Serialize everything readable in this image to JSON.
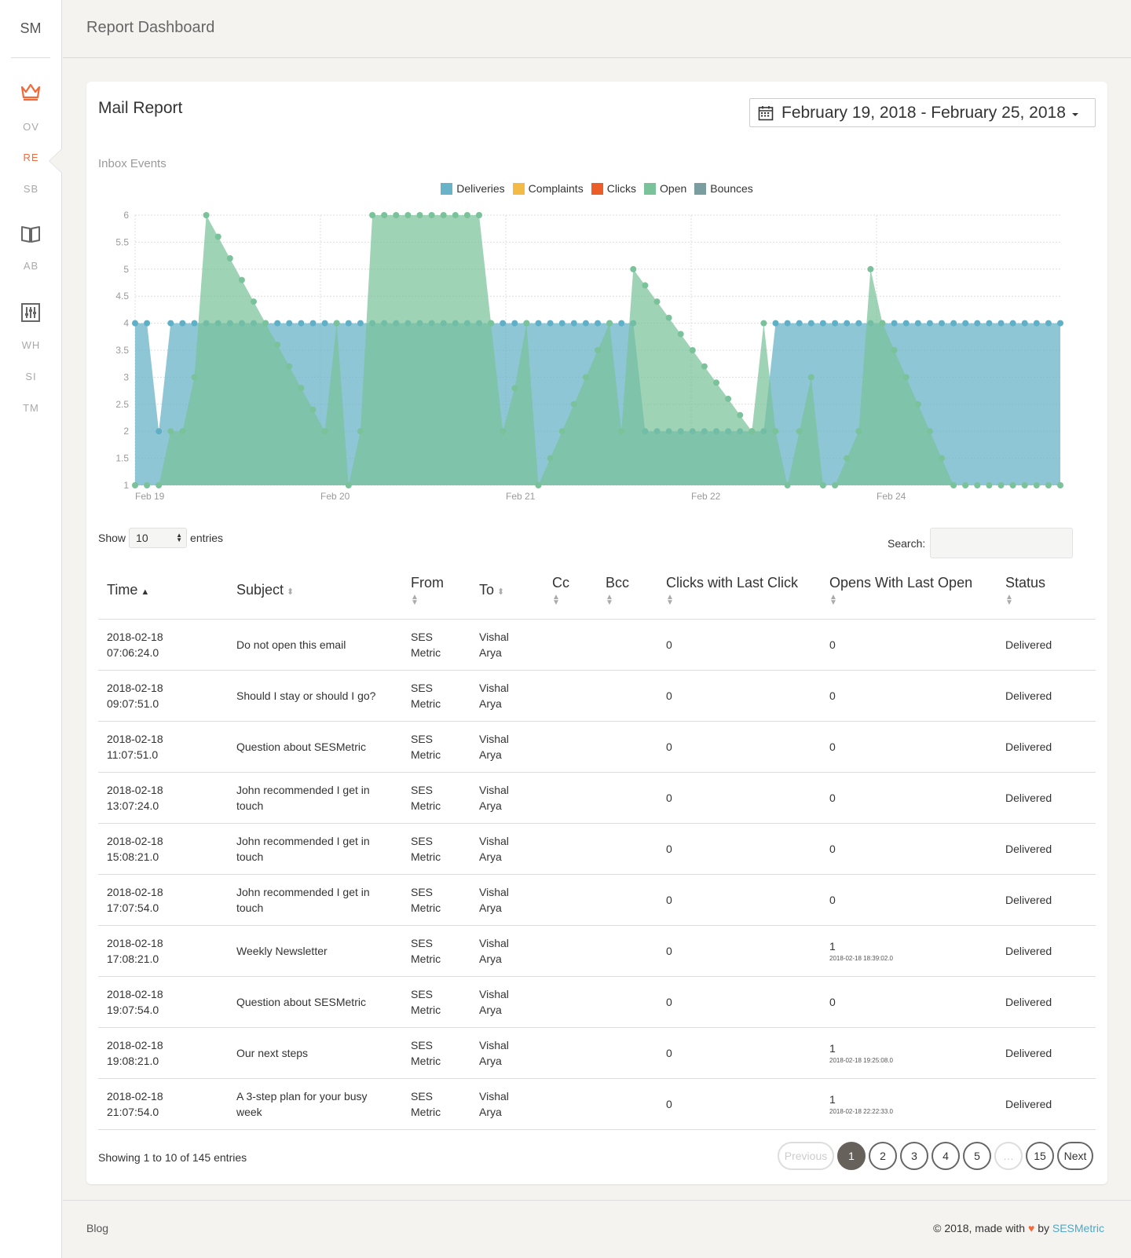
{
  "sidebar": {
    "brand": "SM",
    "items": [
      {
        "label": "OV",
        "icon": "crown-icon"
      },
      {
        "label": "RE",
        "active": true
      },
      {
        "label": "SB"
      },
      {
        "label": "AB",
        "icon": "book-icon"
      },
      {
        "label": "WH",
        "icon": "sliders-icon"
      },
      {
        "label": "SI"
      },
      {
        "label": "TM"
      }
    ]
  },
  "header": {
    "title": "Report Dashboard"
  },
  "card": {
    "title": "Mail Report",
    "date_range": "February 19, 2018 - February 25, 2018",
    "chart_caption": "Inbox Events"
  },
  "chart_data": {
    "type": "area",
    "legend": [
      "Deliveries",
      "Complaints",
      "Clicks",
      "Open",
      "Bounces"
    ],
    "colors": {
      "Deliveries": "#68b3c8",
      "Complaints": "#f3bb45",
      "Clicks": "#eb5e28",
      "Open": "#7ac29a",
      "Bounces": "#7a9e9f"
    },
    "ylim": [
      1,
      6
    ],
    "yticks": [
      1,
      1.5,
      2,
      2.5,
      3,
      3.5,
      4,
      4.5,
      5,
      5.5,
      6
    ],
    "xticks": [
      "Feb 19",
      "Feb 20",
      "Feb 21",
      "Feb 22",
      "Feb 24"
    ],
    "grid": true,
    "legend_position": "top",
    "series": [
      {
        "name": "Deliveries",
        "values": [
          4,
          4,
          2,
          4,
          4,
          4,
          4,
          4,
          4,
          4,
          4,
          4,
          4,
          4,
          4,
          4,
          4,
          4,
          4,
          4,
          4,
          4,
          4,
          4,
          4,
          4,
          4,
          4,
          4,
          4,
          4,
          4,
          4,
          4,
          4,
          4,
          4,
          4,
          4,
          4,
          4,
          4,
          4,
          2,
          2,
          2,
          2,
          2,
          2,
          2,
          2,
          2,
          2,
          2,
          4,
          4,
          4,
          4,
          4,
          4,
          4,
          4,
          4,
          4,
          4,
          4,
          4,
          4,
          4,
          4,
          4,
          4,
          4,
          4,
          4,
          4,
          4,
          4,
          4
        ]
      },
      {
        "name": "Open",
        "values": [
          1,
          1,
          1,
          2,
          2,
          3,
          6,
          5.6,
          5.2,
          4.8,
          4.4,
          4,
          3.6,
          3.2,
          2.8,
          2.4,
          2,
          4,
          1,
          2,
          6,
          6,
          6,
          6,
          6,
          6,
          6,
          6,
          6,
          6,
          4,
          2,
          2.8,
          4,
          1,
          1.5,
          2,
          2.5,
          3,
          3.5,
          4,
          2,
          5,
          4.7,
          4.4,
          4.1,
          3.8,
          3.5,
          3.2,
          2.9,
          2.6,
          2.3,
          2,
          4,
          2,
          1,
          2,
          3,
          1,
          1,
          1.5,
          2,
          5,
          4,
          3.5,
          3,
          2.5,
          2,
          1.5,
          1,
          1,
          1,
          1,
          1,
          1,
          1,
          1,
          1,
          1
        ]
      }
    ]
  },
  "table_controls": {
    "show": "Show",
    "length": "10",
    "entries": "entries",
    "search": "Search:"
  },
  "table": {
    "columns": [
      "Time",
      "Subject",
      "From",
      "To",
      "Cc",
      "Bcc",
      "Clicks with Last Click",
      "Opens With Last Open",
      "Status"
    ],
    "rows": [
      {
        "time1": "2018-02-18",
        "time2": "07:06:24.0",
        "subject": "Do not open this email",
        "from1": "SES",
        "from2": "Metric",
        "to1": "Vishal",
        "to2": "Arya",
        "clicks": "0",
        "opens": "0",
        "opens_sub": "",
        "status": "Delivered"
      },
      {
        "time1": "2018-02-18",
        "time2": "09:07:51.0",
        "subject": "Should I stay or should I go?",
        "from1": "SES",
        "from2": "Metric",
        "to1": "Vishal",
        "to2": "Arya",
        "clicks": "0",
        "opens": "0",
        "opens_sub": "",
        "status": "Delivered"
      },
      {
        "time1": "2018-02-18",
        "time2": "11:07:51.0",
        "subject": "Question about SESMetric",
        "from1": "SES",
        "from2": "Metric",
        "to1": "Vishal",
        "to2": "Arya",
        "clicks": "0",
        "opens": "0",
        "opens_sub": "",
        "status": "Delivered"
      },
      {
        "time1": "2018-02-18",
        "time2": "13:07:24.0",
        "subject": "John recommended I get in touch",
        "from1": "SES",
        "from2": "Metric",
        "to1": "Vishal",
        "to2": "Arya",
        "clicks": "0",
        "opens": "0",
        "opens_sub": "",
        "status": "Delivered"
      },
      {
        "time1": "2018-02-18",
        "time2": "15:08:21.0",
        "subject": "John recommended I get in touch",
        "from1": "SES",
        "from2": "Metric",
        "to1": "Vishal",
        "to2": "Arya",
        "clicks": "0",
        "opens": "0",
        "opens_sub": "",
        "status": "Delivered"
      },
      {
        "time1": "2018-02-18",
        "time2": "17:07:54.0",
        "subject": "John recommended I get in touch",
        "from1": "SES",
        "from2": "Metric",
        "to1": "Vishal",
        "to2": "Arya",
        "clicks": "0",
        "opens": "0",
        "opens_sub": "",
        "status": "Delivered"
      },
      {
        "time1": "2018-02-18",
        "time2": "17:08:21.0",
        "subject": "Weekly Newsletter",
        "from1": "SES",
        "from2": "Metric",
        "to1": "Vishal",
        "to2": "Arya",
        "clicks": "0",
        "opens": "1",
        "opens_sub": "2018-02-18 18:39:02.0",
        "status": "Delivered"
      },
      {
        "time1": "2018-02-18",
        "time2": "19:07:54.0",
        "subject": "Question about SESMetric",
        "from1": "SES",
        "from2": "Metric",
        "to1": "Vishal",
        "to2": "Arya",
        "clicks": "0",
        "opens": "0",
        "opens_sub": "",
        "status": "Delivered"
      },
      {
        "time1": "2018-02-18",
        "time2": "19:08:21.0",
        "subject": "Our next steps",
        "from1": "SES",
        "from2": "Metric",
        "to1": "Vishal",
        "to2": "Arya",
        "clicks": "0",
        "opens": "1",
        "opens_sub": "2018-02-18 19:25:08.0",
        "status": "Delivered"
      },
      {
        "time1": "2018-02-18",
        "time2": "21:07:54.0",
        "subject": "A 3-step plan for your busy week",
        "from1": "SES",
        "from2": "Metric",
        "to1": "Vishal",
        "to2": "Arya",
        "clicks": "0",
        "opens": "1",
        "opens_sub": "2018-02-18 22:22:33.0",
        "status": "Delivered"
      }
    ]
  },
  "pagination": {
    "info": "Showing 1 to 10 of 145 entries",
    "previous": "Previous",
    "next": "Next",
    "pages": [
      "1",
      "2",
      "3",
      "4",
      "5",
      "…",
      "15"
    ]
  },
  "footer": {
    "blog": "Blog",
    "copy_prefix": "© 2018, made with",
    "heart": "♥",
    "by": "by",
    "brand": "SESMetric"
  }
}
